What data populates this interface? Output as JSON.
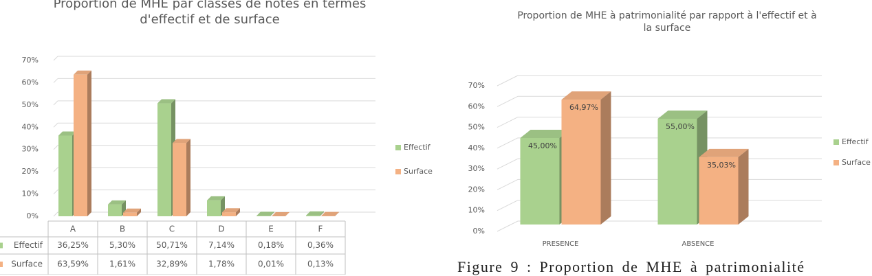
{
  "chart_data": [
    {
      "type": "bar",
      "title": "Proportion de MHE par classes de notes en termes d'effectif et de surface",
      "categories": [
        "A",
        "B",
        "C",
        "D",
        "E",
        "F"
      ],
      "series": [
        {
          "name": "Effectif",
          "color": "#a9d18e",
          "values": [
            36.25,
            5.3,
            50.71,
            7.14,
            0.18,
            0.36
          ],
          "value_labels": [
            "36,25%",
            "5,30%",
            "50,71%",
            "7,14%",
            "0,18%",
            "0,36%"
          ]
        },
        {
          "name": "Surface",
          "color": "#f4b183",
          "values": [
            63.59,
            1.61,
            32.89,
            1.78,
            0.01,
            0.13
          ],
          "value_labels": [
            "63,59%",
            "1,61%",
            "32,89%",
            "1,78%",
            "0,01%",
            "0,13%"
          ]
        }
      ],
      "ylim": [
        0,
        70
      ],
      "yticks": [
        {
          "value": 0,
          "label": "0%"
        },
        {
          "value": 10,
          "label": "10%"
        },
        {
          "value": 20,
          "label": "20%"
        },
        {
          "value": 30,
          "label": "30%"
        },
        {
          "value": 40,
          "label": "40%"
        },
        {
          "value": 50,
          "label": "50%"
        },
        {
          "value": 60,
          "label": "60%"
        },
        {
          "value": 70,
          "label": "70%"
        }
      ],
      "grid": true,
      "legend": "right",
      "data_table": true
    },
    {
      "type": "bar",
      "title": "Proportion de MHE à patrimonialité par rapport à l'effectif et à la surface",
      "categories": [
        "PRESENCE",
        "ABSENCE"
      ],
      "series": [
        {
          "name": "Effectif",
          "color": "#a9d18e",
          "values": [
            45.0,
            55.0
          ],
          "value_labels": [
            "45,00%",
            "55,00%"
          ]
        },
        {
          "name": "Surface",
          "color": "#f4b183",
          "values": [
            64.97,
            35.03
          ],
          "value_labels": [
            "64,97%",
            "35,03%"
          ]
        }
      ],
      "ylim": [
        0,
        70
      ],
      "yticks": [
        {
          "value": 0,
          "label": "0%"
        },
        {
          "value": 10,
          "label": "10%"
        },
        {
          "value": 20,
          "label": "20%"
        },
        {
          "value": 30,
          "label": "30%"
        },
        {
          "value": 40,
          "label": "40%"
        },
        {
          "value": 50,
          "label": "50%"
        },
        {
          "value": 60,
          "label": "60%"
        },
        {
          "value": 70,
          "label": "70%"
        }
      ],
      "grid": true,
      "legend": "right",
      "data_table": false
    }
  ],
  "caption": "Figure 9 : Proportion de MHE à patrimonialité"
}
